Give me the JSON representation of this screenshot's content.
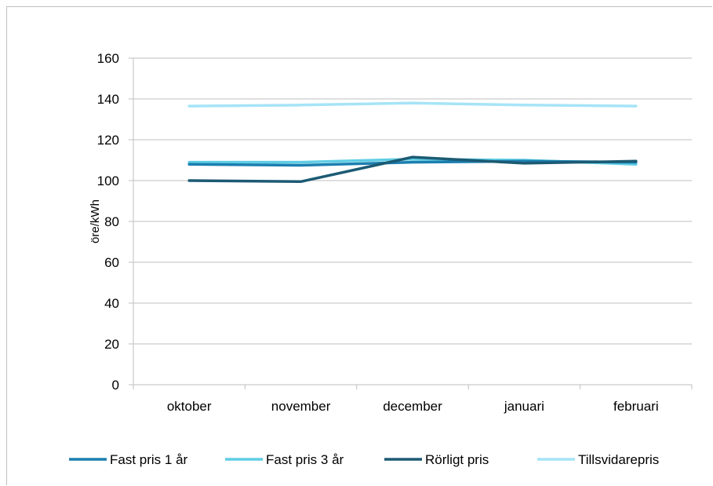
{
  "chart_data": {
    "type": "line",
    "title": "",
    "xlabel": "",
    "ylabel": "öre/kWh",
    "ylim": [
      0,
      160
    ],
    "yticks": [
      0,
      20,
      40,
      60,
      80,
      100,
      120,
      140,
      160
    ],
    "categories": [
      "oktober",
      "november",
      "december",
      "januari",
      "februari"
    ],
    "grid": "horizontal",
    "legend_position": "bottom",
    "series": [
      {
        "name": "Fast pris 1 år",
        "color": "#1b7fb0",
        "values": [
          108,
          107.5,
          109,
          109.5,
          109
        ]
      },
      {
        "name": "Fast pris 3 år",
        "color": "#5fcde4",
        "values": [
          109,
          109,
          110.5,
          110,
          108
        ]
      },
      {
        "name": "Rörligt pris",
        "color": "#1c5a73",
        "values": [
          100,
          99.5,
          111.5,
          108.5,
          109.5
        ]
      },
      {
        "name": "Tillsvidarepris",
        "color": "#a6e4f7",
        "values": [
          136.5,
          137,
          138,
          137,
          136.5
        ]
      }
    ]
  }
}
